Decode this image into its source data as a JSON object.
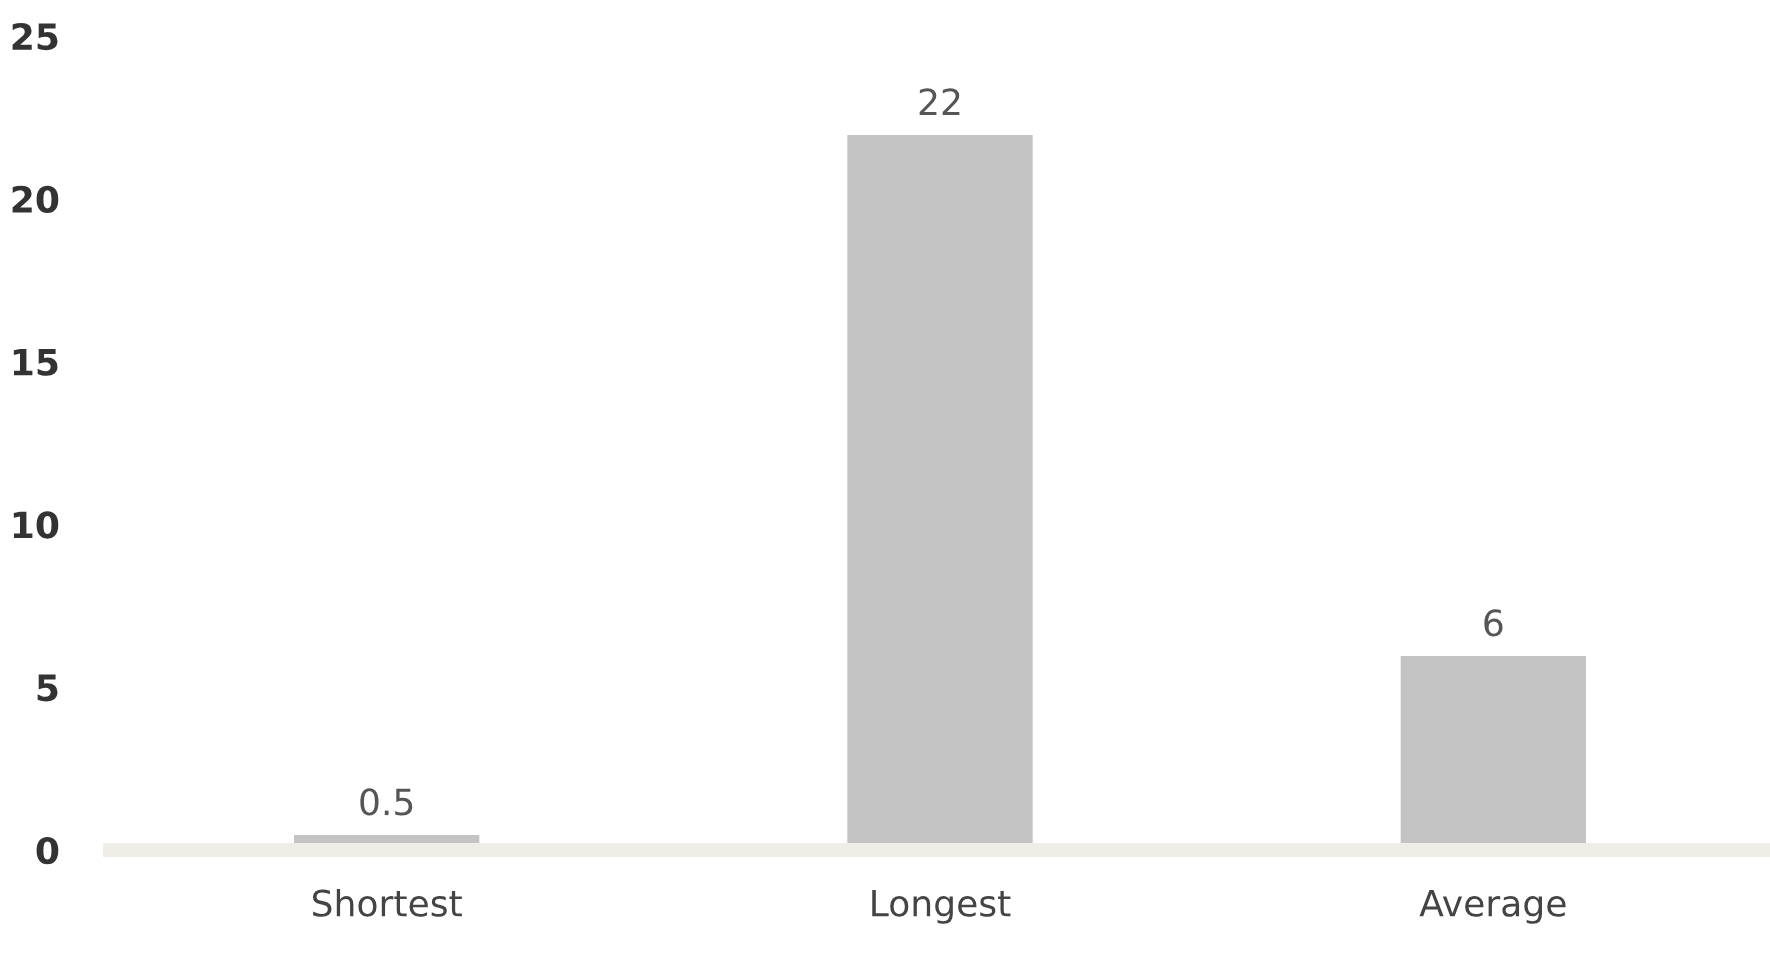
{
  "chart_data": {
    "type": "bar",
    "categories": [
      "Shortest",
      "Longest",
      "Average"
    ],
    "values": [
      0.5,
      22,
      6
    ],
    "color": "#c4c4c4",
    "ylim": [
      0,
      25
    ],
    "yticks": [
      0,
      5,
      10,
      15,
      20,
      25
    ],
    "data_labels": true,
    "grid": false,
    "legend": false
  }
}
